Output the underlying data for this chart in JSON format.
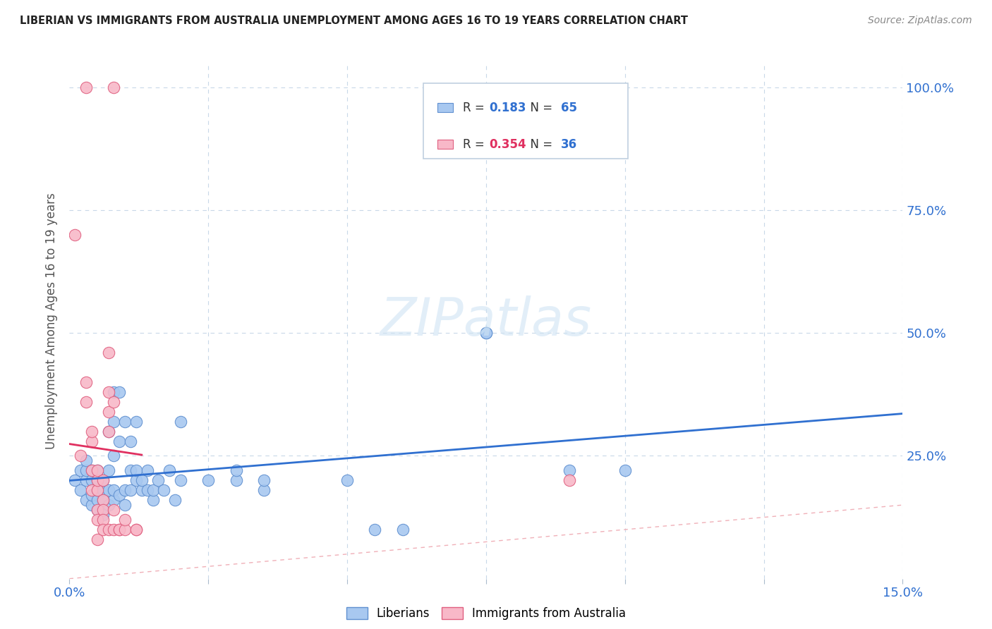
{
  "title": "LIBERIAN VS IMMIGRANTS FROM AUSTRALIA UNEMPLOYMENT AMONG AGES 16 TO 19 YEARS CORRELATION CHART",
  "source": "Source: ZipAtlas.com",
  "ylabel": "Unemployment Among Ages 16 to 19 years",
  "xmin": 0.0,
  "xmax": 0.15,
  "ymin": 0.0,
  "ymax": 1.05,
  "blue_color": "#a8c8f0",
  "blue_edge": "#6090d0",
  "pink_color": "#f8b8c8",
  "pink_edge": "#e06080",
  "line_blue": "#3070d0",
  "line_pink": "#e03060",
  "line_diag_color": "#f0b0b8",
  "R_blue": 0.183,
  "N_blue": 65,
  "R_pink": 0.354,
  "N_pink": 36,
  "legend_R_color": "#3070d0",
  "legend_N_color": "#3070d0",
  "legend_R2_color": "#e03060",
  "legend_N2_color": "#3070d0",
  "tick_color": "#3070d0",
  "blue_scatter": [
    [
      0.001,
      0.2
    ],
    [
      0.002,
      0.22
    ],
    [
      0.002,
      0.18
    ],
    [
      0.003,
      0.2
    ],
    [
      0.003,
      0.16
    ],
    [
      0.003,
      0.22
    ],
    [
      0.003,
      0.24
    ],
    [
      0.004,
      0.15
    ],
    [
      0.004,
      0.17
    ],
    [
      0.004,
      0.2
    ],
    [
      0.004,
      0.22
    ],
    [
      0.005,
      0.14
    ],
    [
      0.005,
      0.16
    ],
    [
      0.005,
      0.18
    ],
    [
      0.005,
      0.2
    ],
    [
      0.005,
      0.22
    ],
    [
      0.006,
      0.13
    ],
    [
      0.006,
      0.16
    ],
    [
      0.006,
      0.18
    ],
    [
      0.006,
      0.2
    ],
    [
      0.007,
      0.15
    ],
    [
      0.007,
      0.18
    ],
    [
      0.007,
      0.22
    ],
    [
      0.007,
      0.3
    ],
    [
      0.008,
      0.16
    ],
    [
      0.008,
      0.18
    ],
    [
      0.008,
      0.25
    ],
    [
      0.008,
      0.32
    ],
    [
      0.008,
      0.38
    ],
    [
      0.009,
      0.17
    ],
    [
      0.009,
      0.28
    ],
    [
      0.009,
      0.38
    ],
    [
      0.01,
      0.15
    ],
    [
      0.01,
      0.18
    ],
    [
      0.01,
      0.32
    ],
    [
      0.011,
      0.18
    ],
    [
      0.011,
      0.22
    ],
    [
      0.011,
      0.28
    ],
    [
      0.012,
      0.2
    ],
    [
      0.012,
      0.22
    ],
    [
      0.012,
      0.32
    ],
    [
      0.013,
      0.18
    ],
    [
      0.013,
      0.2
    ],
    [
      0.014,
      0.18
    ],
    [
      0.014,
      0.22
    ],
    [
      0.015,
      0.16
    ],
    [
      0.015,
      0.18
    ],
    [
      0.016,
      0.2
    ],
    [
      0.017,
      0.18
    ],
    [
      0.018,
      0.22
    ],
    [
      0.019,
      0.16
    ],
    [
      0.02,
      0.2
    ],
    [
      0.02,
      0.32
    ],
    [
      0.025,
      0.2
    ],
    [
      0.03,
      0.2
    ],
    [
      0.03,
      0.22
    ],
    [
      0.035,
      0.18
    ],
    [
      0.035,
      0.2
    ],
    [
      0.05,
      0.2
    ],
    [
      0.055,
      0.1
    ],
    [
      0.06,
      0.1
    ],
    [
      0.075,
      0.5
    ],
    [
      0.075,
      0.5
    ],
    [
      0.09,
      0.22
    ],
    [
      0.1,
      0.22
    ]
  ],
  "pink_scatter": [
    [
      0.001,
      0.7
    ],
    [
      0.002,
      0.25
    ],
    [
      0.003,
      0.4
    ],
    [
      0.003,
      0.36
    ],
    [
      0.003,
      1.0
    ],
    [
      0.004,
      0.18
    ],
    [
      0.004,
      0.22
    ],
    [
      0.004,
      0.28
    ],
    [
      0.004,
      0.3
    ],
    [
      0.005,
      0.18
    ],
    [
      0.005,
      0.2
    ],
    [
      0.005,
      0.22
    ],
    [
      0.005,
      0.14
    ],
    [
      0.005,
      0.12
    ],
    [
      0.005,
      0.08
    ],
    [
      0.006,
      0.16
    ],
    [
      0.006,
      0.2
    ],
    [
      0.006,
      0.14
    ],
    [
      0.006,
      0.12
    ],
    [
      0.006,
      0.1
    ],
    [
      0.007,
      0.38
    ],
    [
      0.007,
      0.34
    ],
    [
      0.007,
      0.3
    ],
    [
      0.007,
      0.1
    ],
    [
      0.007,
      0.46
    ],
    [
      0.008,
      0.36
    ],
    [
      0.008,
      0.14
    ],
    [
      0.008,
      0.1
    ],
    [
      0.008,
      1.0
    ],
    [
      0.009,
      0.1
    ],
    [
      0.009,
      0.1
    ],
    [
      0.01,
      0.1
    ],
    [
      0.01,
      0.12
    ],
    [
      0.012,
      0.1
    ],
    [
      0.012,
      0.1
    ],
    [
      0.09,
      0.2
    ]
  ]
}
